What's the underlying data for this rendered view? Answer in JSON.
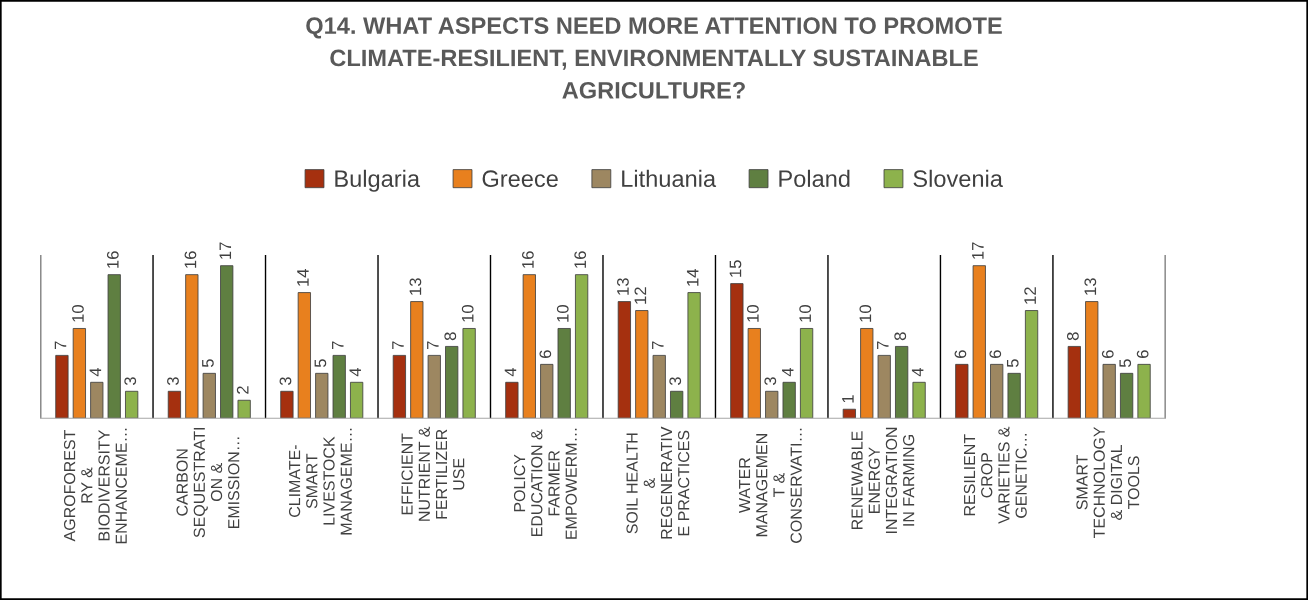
{
  "chart_data": {
    "type": "bar",
    "title": "Q14. WHAT ASPECTS NEED MORE ATTENTION TO PROMOTE\nCLIMATE-RESILIENT, ENVIRONMENTALLY SUSTAINABLE\nAGRICULTURE?",
    "categories": [
      "AGROFOREST\nRY &\nBIODIVERSITY\nENHANCEME…",
      "CARBON\nSEQUESTRATI\nON &\nEMISSION…",
      "CLIMATE-\nSMART\nLIVESTOCK\nMANAGEME…",
      "EFFICIENT\nNUTRIENT &\nFERTILIZER\nUSE",
      "POLICY\nEDUCATION &\nFARMER\nEMPOWERM…",
      "SOIL HEALTH\n&\nREGENERATIV\nE PRACTICES",
      "WATER\nMANAGEMEN\nT &\nCONSERVATI…",
      "RENEWABLE\nENERGY\nINTEGRATION\nIN FARMING",
      "RESILIENT\nCROP\nVARIETIES &\nGENETIC…",
      "SMART\nTECHNOLOGY\n& DIGITAL\nTOOLS"
    ],
    "series": [
      {
        "name": "Bulgaria",
        "color": "#a5300f",
        "values": [
          7,
          3,
          3,
          7,
          4,
          13,
          15,
          1,
          6,
          8
        ]
      },
      {
        "name": "Greece",
        "color": "#e8801e",
        "values": [
          10,
          16,
          14,
          13,
          16,
          12,
          10,
          10,
          17,
          13
        ]
      },
      {
        "name": "Lithuania",
        "color": "#9d8761",
        "values": [
          4,
          5,
          5,
          7,
          6,
          7,
          3,
          7,
          6,
          6
        ]
      },
      {
        "name": "Poland",
        "color": "#5f7f41",
        "values": [
          16,
          17,
          7,
          8,
          10,
          3,
          4,
          8,
          5,
          5
        ]
      },
      {
        "name": "Slovenia",
        "color": "#8db24c",
        "values": [
          3,
          2,
          4,
          10,
          16,
          14,
          10,
          4,
          12,
          6
        ]
      }
    ],
    "data_labels": true,
    "legend": "top",
    "grid": "x",
    "tick_labels": "x"
  }
}
